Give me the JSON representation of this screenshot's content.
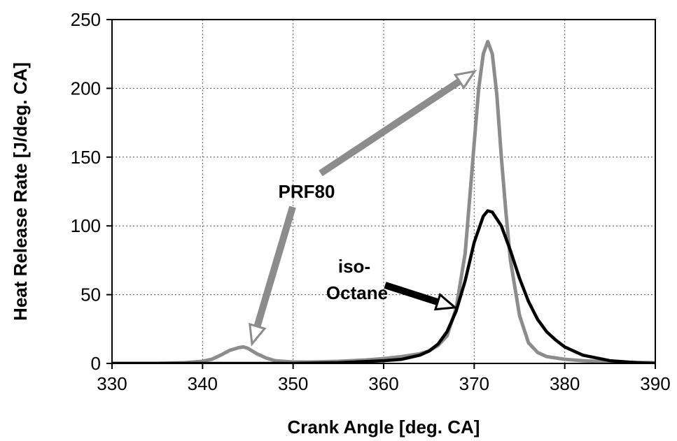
{
  "chart_data": {
    "type": "line",
    "title": "",
    "xlabel": "Crank Angle [deg. CA]",
    "ylabel": "Heat Release Rate [J/deg. CA]",
    "xlim": [
      330,
      390
    ],
    "ylim": [
      0,
      250
    ],
    "xticks": [
      330,
      340,
      350,
      360,
      370,
      380,
      390
    ],
    "yticks": [
      0,
      50,
      100,
      150,
      200,
      250
    ],
    "grid": true,
    "series": [
      {
        "name": "PRF80",
        "color": "#8c8c8c",
        "x": [
          330,
          335,
          338,
          340,
          341,
          342,
          343,
          344,
          344.5,
          345,
          346,
          347,
          348,
          350,
          352,
          355,
          358,
          360,
          362,
          364,
          365,
          366,
          367,
          368,
          369,
          369.5,
          370,
          370.5,
          371,
          371.5,
          372,
          372.5,
          373,
          373.5,
          374,
          375,
          376,
          377,
          378,
          380,
          382,
          385,
          390
        ],
        "y": [
          0,
          0,
          0.5,
          1.5,
          3,
          6,
          9.5,
          11.5,
          12,
          11,
          7,
          4,
          2,
          1,
          1,
          1.5,
          2.5,
          3.5,
          5,
          7,
          9,
          13,
          20,
          40,
          80,
          120,
          160,
          200,
          225,
          234,
          225,
          195,
          150,
          110,
          75,
          35,
          15,
          8,
          5,
          3,
          2,
          1,
          0.5
        ]
      },
      {
        "name": "iso-Octane",
        "color": "#000000",
        "x": [
          330,
          340,
          350,
          355,
          360,
          362,
          364,
          365,
          366,
          367,
          368,
          369,
          370,
          371,
          371.5,
          372,
          373,
          374,
          375,
          376,
          377,
          378,
          379,
          380,
          382,
          385,
          388,
          390
        ],
        "y": [
          0,
          0,
          0,
          0.5,
          2,
          3,
          6,
          9,
          14,
          23,
          38,
          60,
          88,
          107,
          111,
          110,
          100,
          82,
          62,
          45,
          32,
          23,
          17,
          12,
          6,
          2,
          0.5,
          0
        ]
      }
    ],
    "annotations": [
      {
        "text": "PRF80",
        "color": "#000000"
      },
      {
        "text": "iso-",
        "color": "#000000"
      },
      {
        "text": "Octane",
        "color": "#000000"
      }
    ]
  }
}
